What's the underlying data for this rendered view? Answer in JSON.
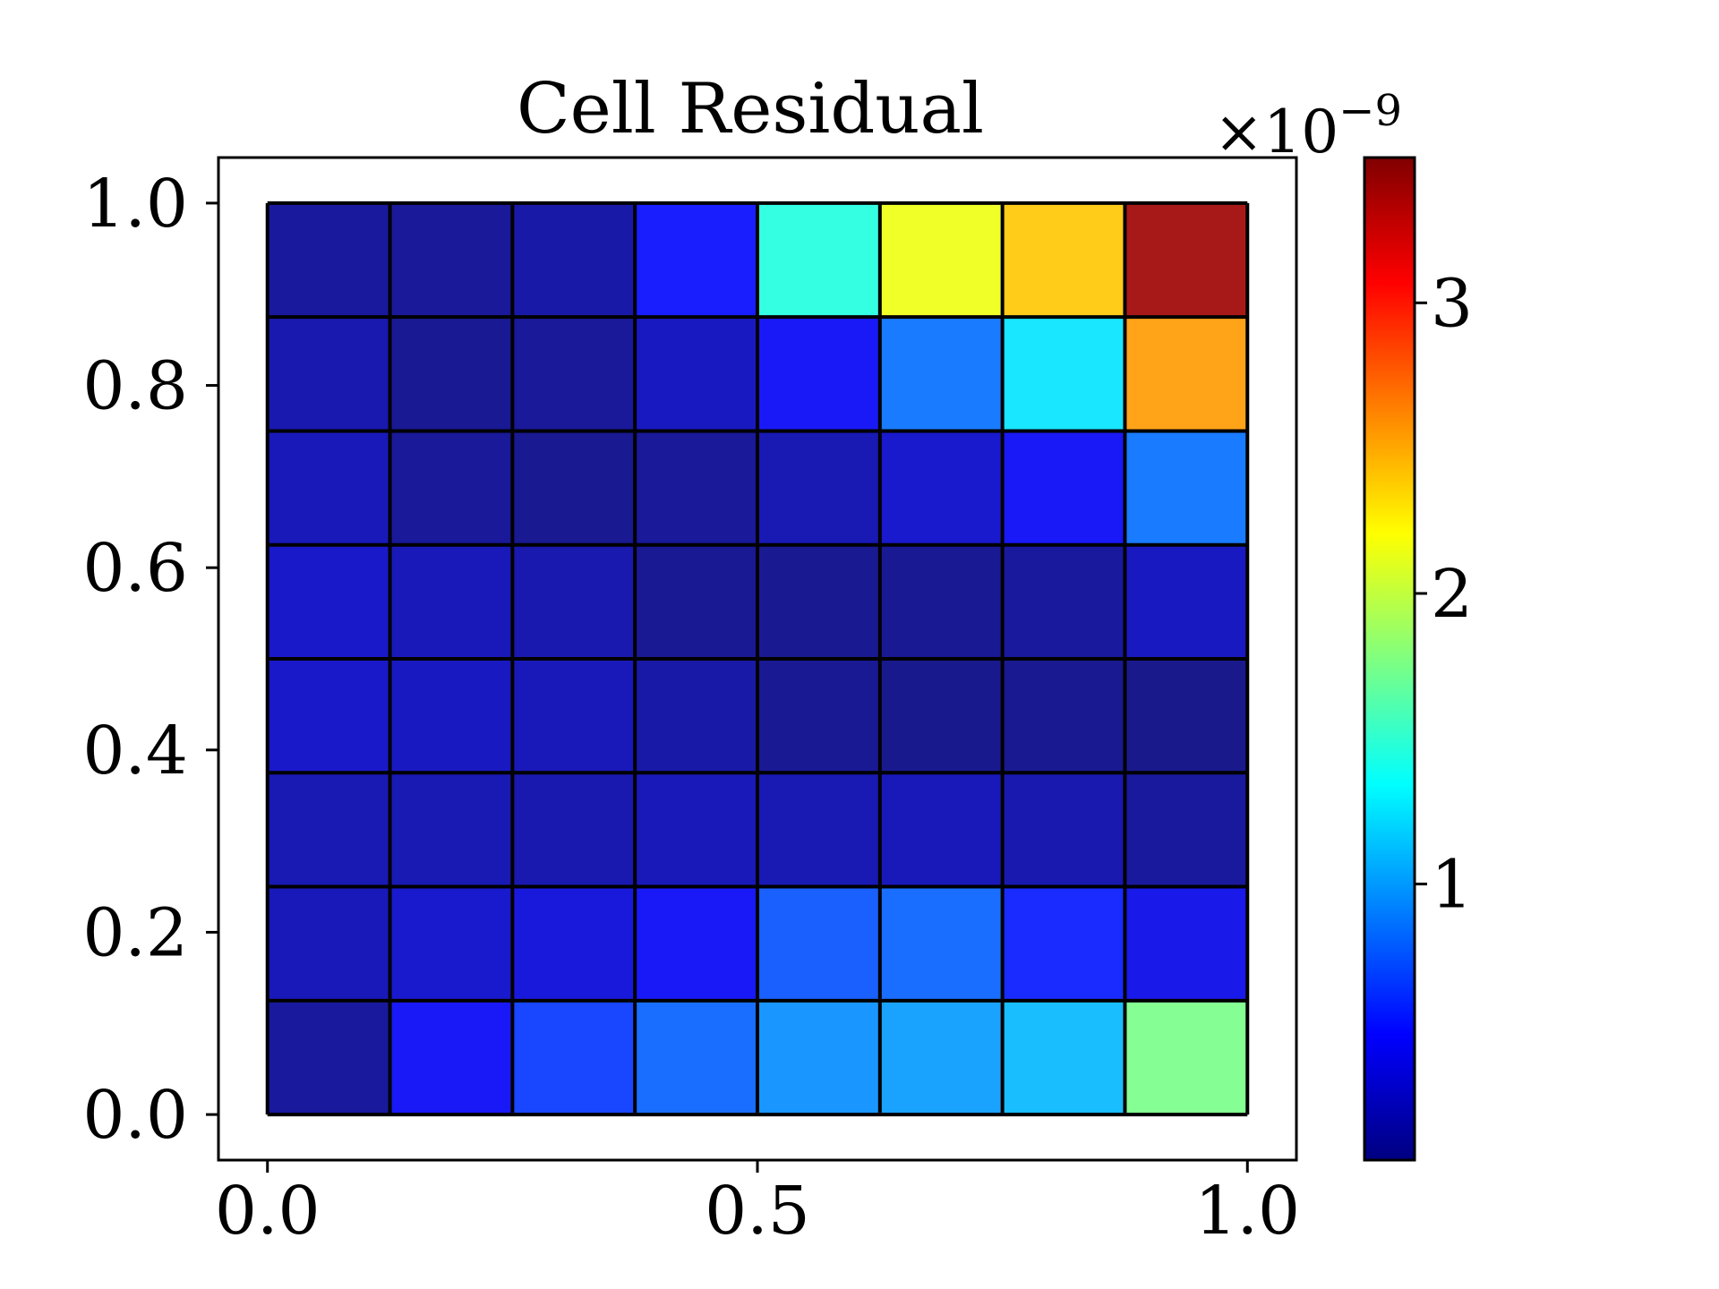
{
  "chart_data": {
    "type": "heatmap",
    "title": "Cell Residual",
    "xlabel": "",
    "ylabel": "",
    "xlim": [
      -0.05,
      1.05
    ],
    "ylim": [
      -0.05,
      1.05
    ],
    "x_ticks": [
      "0.0",
      "0.5",
      "1.0"
    ],
    "y_ticks": [
      "0.0",
      "0.2",
      "0.4",
      "0.6",
      "0.8",
      "1.0"
    ],
    "x_tick_values": [
      0.0,
      0.5,
      1.0
    ],
    "y_tick_values": [
      0.0,
      0.2,
      0.4,
      0.6,
      0.8,
      1.0
    ],
    "grid": false,
    "nx": 8,
    "ny": 8,
    "row_order": "top-to-bottom",
    "values_scaled_1e-9": [
      [
        0.12,
        0.1,
        0.15,
        0.5,
        1.45,
        2.15,
        2.4,
        3.4
      ],
      [
        0.18,
        0.08,
        0.1,
        0.25,
        0.45,
        0.85,
        1.25,
        2.55
      ],
      [
        0.22,
        0.1,
        0.07,
        0.1,
        0.2,
        0.3,
        0.45,
        0.85
      ],
      [
        0.28,
        0.22,
        0.18,
        0.08,
        0.07,
        0.08,
        0.12,
        0.25
      ],
      [
        0.28,
        0.25,
        0.22,
        0.15,
        0.08,
        0.06,
        0.07,
        0.05
      ],
      [
        0.2,
        0.2,
        0.18,
        0.22,
        0.2,
        0.22,
        0.18,
        0.12
      ],
      [
        0.22,
        0.3,
        0.35,
        0.45,
        0.75,
        0.8,
        0.55,
        0.4
      ],
      [
        0.12,
        0.45,
        0.65,
        0.8,
        0.95,
        1.0,
        1.1,
        1.75
      ]
    ],
    "colorbar": {
      "colormap": "jet",
      "vmin": 0.05,
      "vmax": 3.5,
      "ticks": [
        "1",
        "2",
        "3"
      ],
      "tick_values": [
        1,
        2,
        3
      ],
      "offset_text": "×10",
      "offset_exponent": "−9"
    }
  }
}
